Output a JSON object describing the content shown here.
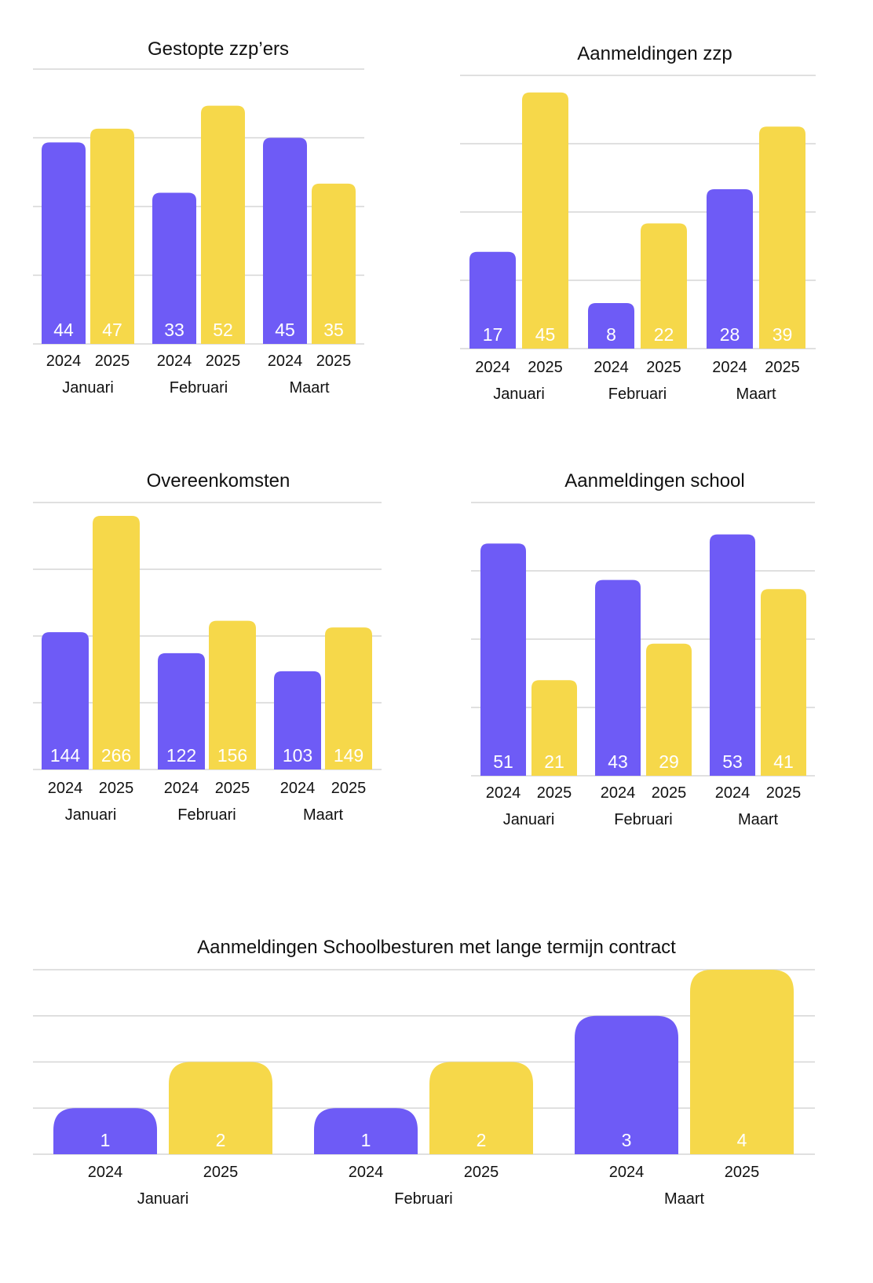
{
  "colors": {
    "s2024": "#6e5bf6",
    "s2025": "#f6d84a"
  },
  "chart_data": [
    {
      "type": "bar",
      "title": "Gestopte zzp’ers",
      "categories": [
        "Januari",
        "Februari",
        "Maart"
      ],
      "series": [
        {
          "name": "2024",
          "values": [
            44,
            33,
            45
          ]
        },
        {
          "name": "2025",
          "values": [
            47,
            52,
            35
          ]
        }
      ],
      "ylim": [
        0,
        60
      ],
      "gridlines": 4,
      "grid": true
    },
    {
      "type": "bar",
      "title": "Aanmeldingen zzp",
      "categories": [
        "Januari",
        "Februari",
        "Maart"
      ],
      "series": [
        {
          "name": "2024",
          "values": [
            17,
            8,
            28
          ]
        },
        {
          "name": "2025",
          "values": [
            45,
            22,
            39
          ]
        }
      ],
      "ylim": [
        0,
        48
      ],
      "gridlines": 4,
      "grid": true
    },
    {
      "type": "bar",
      "title": "Overeenkomsten",
      "categories": [
        "Januari",
        "Februari",
        "Maart"
      ],
      "series": [
        {
          "name": "2024",
          "values": [
            144,
            122,
            103
          ]
        },
        {
          "name": "2025",
          "values": [
            266,
            156,
            149
          ]
        }
      ],
      "ylim": [
        0,
        280
      ],
      "gridlines": 4,
      "grid": true
    },
    {
      "type": "bar",
      "title": "Aanmeldingen school",
      "categories": [
        "Januari",
        "Februari",
        "Maart"
      ],
      "series": [
        {
          "name": "2024",
          "values": [
            51,
            43,
            53
          ]
        },
        {
          "name": "2025",
          "values": [
            21,
            29,
            41
          ]
        }
      ],
      "ylim": [
        0,
        60
      ],
      "gridlines": 4,
      "grid": true
    },
    {
      "type": "bar",
      "title": "Aanmeldingen Schoolbesturen met lange termijn contract",
      "categories": [
        "Januari",
        "Februari",
        "Maart"
      ],
      "series": [
        {
          "name": "2024",
          "values": [
            1,
            1,
            3
          ]
        },
        {
          "name": "2025",
          "values": [
            2,
            2,
            4
          ]
        }
      ],
      "ylim": [
        0,
        4
      ],
      "gridlines": 4,
      "grid": true
    }
  ]
}
